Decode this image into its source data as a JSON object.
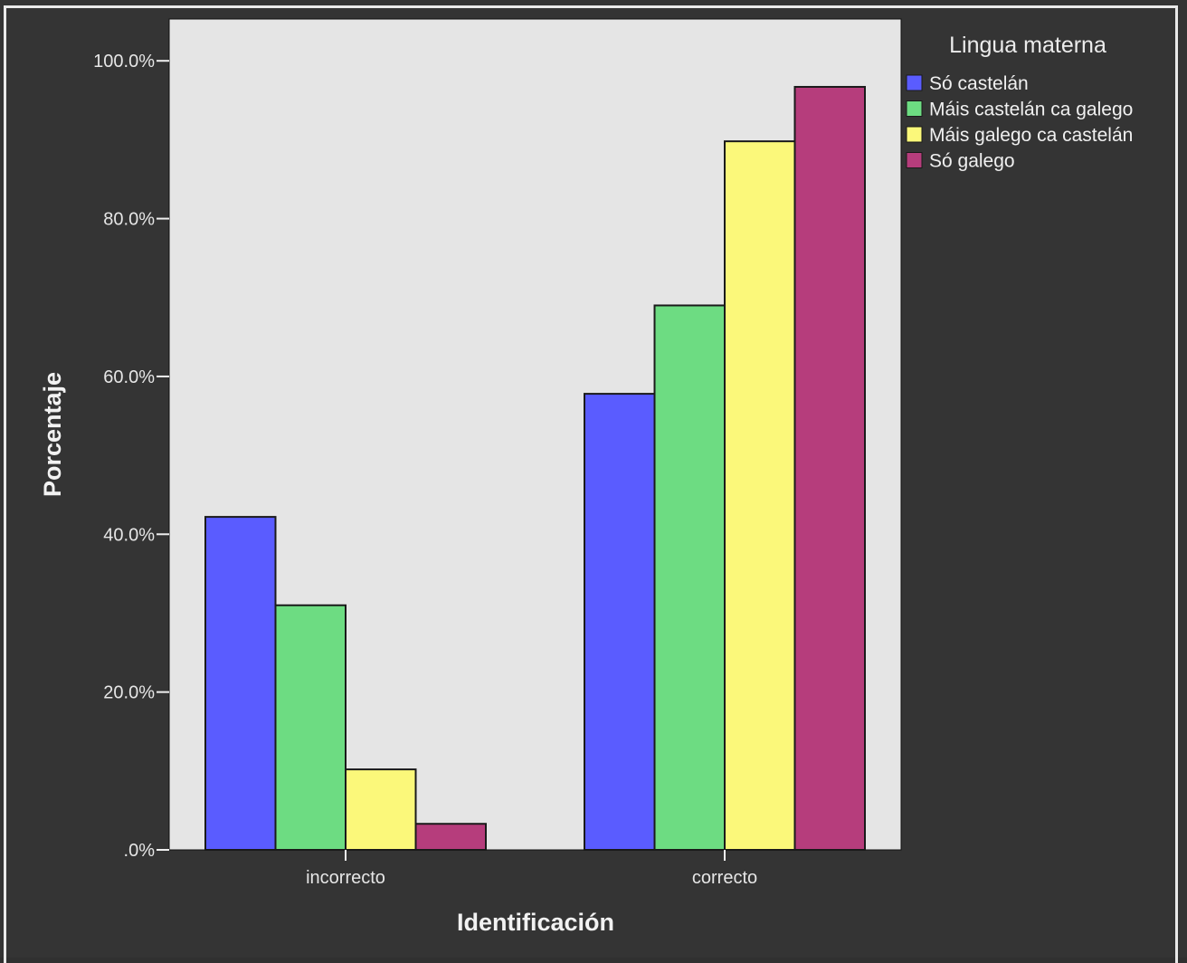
{
  "chart_data": {
    "type": "bar",
    "xlabel": "Identificación",
    "ylabel": "Porcentaje",
    "categories": [
      "incorrecto",
      "correcto"
    ],
    "series": [
      {
        "name": "Só castelán",
        "color": "#5a5cff",
        "values": [
          42.2,
          57.8
        ]
      },
      {
        "name": "Máis castelán ca galego",
        "color": "#6ddc82",
        "values": [
          31.0,
          69.0
        ]
      },
      {
        "name": "Máis galego ca castelán",
        "color": "#fbf87a",
        "values": [
          10.2,
          89.8
        ]
      },
      {
        "name": "Só galego",
        "color": "#b63d7c",
        "values": [
          3.3,
          96.7
        ]
      }
    ],
    "yticks": [
      {
        "value": 0,
        "label": ".0%"
      },
      {
        "value": 20,
        "label": "20.0%"
      },
      {
        "value": 40,
        "label": "40.0%"
      },
      {
        "value": 60,
        "label": "60.0%"
      },
      {
        "value": 80,
        "label": "80.0%"
      },
      {
        "value": 100,
        "label": "100.0%"
      }
    ],
    "ylim": [
      0,
      105.3
    ],
    "legend": {
      "title": "Lingua materna",
      "position": "right-top"
    },
    "plot_background": "#e5e5e5",
    "page_background": "#343434"
  }
}
